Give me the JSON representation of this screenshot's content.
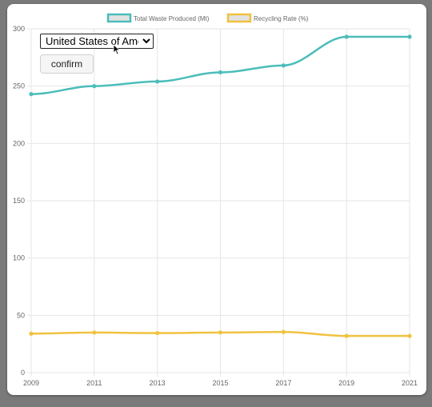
{
  "controls": {
    "country_selected": "United States of America",
    "confirm_label": "confirm"
  },
  "chart_data": {
    "type": "line",
    "x": [
      "2009",
      "2011",
      "2013",
      "2015",
      "2017",
      "2019",
      "2021"
    ],
    "series": [
      {
        "name": "Total Waste Produced (Mt)",
        "color": "#4bbdba",
        "values": [
          243,
          250,
          254,
          262,
          268,
          293,
          293
        ]
      },
      {
        "name": "Recycling Rate (%)",
        "color": "#f0c240",
        "values": [
          34,
          35,
          34.5,
          35,
          35.5,
          32,
          32
        ]
      }
    ],
    "ylim": [
      0,
      300
    ],
    "yticks": [
      0,
      50,
      100,
      150,
      200,
      250,
      300
    ],
    "grid": true,
    "legend_position": "top"
  }
}
